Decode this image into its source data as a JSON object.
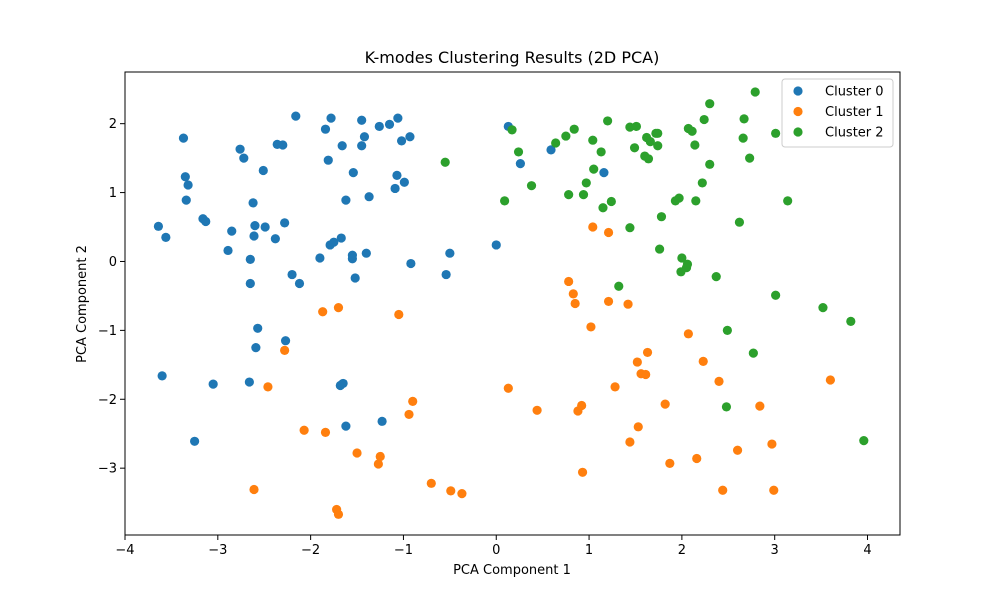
{
  "chart_data": {
    "type": "scatter",
    "title": "K-modes Clustering Results (2D PCA)",
    "xlabel": "PCA Component 1",
    "ylabel": "PCA Component 2",
    "xlim": [
      -4,
      4.35
    ],
    "ylim": [
      -3.97,
      2.75
    ],
    "xticks": [
      -4,
      -3,
      -2,
      -1,
      0,
      1,
      2,
      3,
      4
    ],
    "yticks": [
      -3,
      -2,
      -1,
      0,
      1,
      2
    ],
    "grid": false,
    "legend_position": "top-right",
    "series": [
      {
        "name": "Cluster 0",
        "color": "#1f77b4",
        "points": [
          [
            -3.64,
            0.51
          ],
          [
            -3.56,
            0.35
          ],
          [
            -3.37,
            1.79
          ],
          [
            -3.35,
            1.23
          ],
          [
            -3.32,
            1.11
          ],
          [
            -3.34,
            0.89
          ],
          [
            -3.16,
            0.62
          ],
          [
            -3.13,
            0.58
          ],
          [
            -2.89,
            0.16
          ],
          [
            -2.85,
            0.44
          ],
          [
            -2.76,
            1.63
          ],
          [
            -2.72,
            1.5
          ],
          [
            -2.65,
            0.03
          ],
          [
            -2.65,
            -0.32
          ],
          [
            -2.62,
            0.85
          ],
          [
            -2.6,
            0.52
          ],
          [
            -2.61,
            0.37
          ],
          [
            -2.51,
            1.32
          ],
          [
            -2.49,
            0.5
          ],
          [
            -2.38,
            0.33
          ],
          [
            -2.36,
            1.7
          ],
          [
            -2.3,
            1.69
          ],
          [
            -2.28,
            0.56
          ],
          [
            -2.2,
            -0.19
          ],
          [
            -2.16,
            2.11
          ],
          [
            -2.12,
            -0.32
          ],
          [
            -1.9,
            0.05
          ],
          [
            -1.84,
            1.92
          ],
          [
            -1.81,
            1.47
          ],
          [
            -1.78,
            2.08
          ],
          [
            -1.79,
            0.24
          ],
          [
            -1.75,
            0.28
          ],
          [
            -1.66,
            1.68
          ],
          [
            -1.67,
            0.34
          ],
          [
            -1.62,
            0.89
          ],
          [
            -1.54,
            1.29
          ],
          [
            -1.55,
            0.09
          ],
          [
            -1.55,
            0.04
          ],
          [
            -1.52,
            -0.24
          ],
          [
            -1.45,
            2.05
          ],
          [
            -1.45,
            1.68
          ],
          [
            -1.42,
            1.81
          ],
          [
            -1.4,
            0.12
          ],
          [
            -1.37,
            0.94
          ],
          [
            -1.26,
            1.96
          ],
          [
            -1.15,
            1.99
          ],
          [
            -1.09,
            1.06
          ],
          [
            -1.06,
            2.08
          ],
          [
            -1.07,
            1.25
          ],
          [
            -1.02,
            1.75
          ],
          [
            -0.99,
            1.15
          ],
          [
            -0.93,
            1.81
          ],
          [
            -0.92,
            -0.03
          ],
          [
            -0.54,
            -0.19
          ],
          [
            -0.5,
            0.12
          ],
          [
            0.0,
            0.24
          ],
          [
            0.13,
            1.96
          ],
          [
            0.26,
            1.42
          ],
          [
            0.59,
            1.62
          ],
          [
            1.16,
            1.29
          ],
          [
            -3.6,
            -1.66
          ],
          [
            -3.25,
            -2.61
          ],
          [
            -3.05,
            -1.78
          ],
          [
            -2.66,
            -1.75
          ],
          [
            -2.57,
            -0.97
          ],
          [
            -2.59,
            -1.25
          ],
          [
            -2.27,
            -1.15
          ],
          [
            -1.68,
            -1.8
          ],
          [
            -1.65,
            -1.77
          ],
          [
            -1.62,
            -2.39
          ],
          [
            -1.23,
            -2.32
          ]
        ]
      },
      {
        "name": "Cluster 1",
        "color": "#ff7f0e",
        "points": [
          [
            -2.61,
            -3.31
          ],
          [
            -2.46,
            -1.82
          ],
          [
            -2.28,
            -1.29
          ],
          [
            -2.07,
            -2.45
          ],
          [
            -1.87,
            -0.73
          ],
          [
            -1.84,
            -2.48
          ],
          [
            -1.7,
            -0.67
          ],
          [
            -1.72,
            -3.6
          ],
          [
            -1.7,
            -3.67
          ],
          [
            -1.5,
            -2.78
          ],
          [
            -1.27,
            -2.94
          ],
          [
            -1.25,
            -2.83
          ],
          [
            -1.05,
            -0.77
          ],
          [
            -0.94,
            -2.22
          ],
          [
            -0.9,
            -2.03
          ],
          [
            -0.7,
            -3.22
          ],
          [
            -0.49,
            -3.33
          ],
          [
            -0.37,
            -3.37
          ],
          [
            0.13,
            -1.84
          ],
          [
            0.44,
            -2.16
          ],
          [
            0.78,
            -0.29
          ],
          [
            0.83,
            -0.47
          ],
          [
            0.85,
            -0.61
          ],
          [
            0.88,
            -2.17
          ],
          [
            0.92,
            -2.09
          ],
          [
            0.93,
            -3.06
          ],
          [
            1.02,
            -0.95
          ],
          [
            1.04,
            0.5
          ],
          [
            1.21,
            0.42
          ],
          [
            1.21,
            -0.58
          ],
          [
            1.28,
            -1.82
          ],
          [
            1.42,
            -0.62
          ],
          [
            1.44,
            -2.62
          ],
          [
            1.52,
            -1.46
          ],
          [
            1.53,
            -2.4
          ],
          [
            1.56,
            -1.63
          ],
          [
            1.61,
            -1.64
          ],
          [
            1.63,
            -1.32
          ],
          [
            1.82,
            -2.07
          ],
          [
            1.87,
            -2.93
          ],
          [
            2.07,
            -1.05
          ],
          [
            2.16,
            -2.86
          ],
          [
            2.23,
            -1.45
          ],
          [
            2.4,
            -1.74
          ],
          [
            2.44,
            -3.32
          ],
          [
            2.6,
            -2.74
          ],
          [
            2.84,
            -2.1
          ],
          [
            2.97,
            -2.65
          ],
          [
            2.99,
            -3.32
          ],
          [
            3.6,
            -1.72
          ]
        ]
      },
      {
        "name": "Cluster 2",
        "color": "#2ca02c",
        "points": [
          [
            -0.55,
            1.44
          ],
          [
            0.09,
            0.88
          ],
          [
            0.17,
            1.91
          ],
          [
            0.24,
            1.59
          ],
          [
            0.38,
            1.1
          ],
          [
            0.64,
            1.72
          ],
          [
            0.75,
            1.82
          ],
          [
            0.78,
            0.97
          ],
          [
            0.84,
            1.92
          ],
          [
            0.94,
            0.97
          ],
          [
            0.97,
            1.14
          ],
          [
            1.04,
            1.76
          ],
          [
            1.05,
            1.34
          ],
          [
            1.13,
            1.59
          ],
          [
            1.15,
            0.78
          ],
          [
            1.2,
            2.04
          ],
          [
            1.24,
            0.87
          ],
          [
            1.32,
            -0.36
          ],
          [
            1.44,
            0.49
          ],
          [
            1.44,
            1.95
          ],
          [
            1.49,
            1.65
          ],
          [
            1.51,
            1.96
          ],
          [
            1.6,
            1.53
          ],
          [
            1.62,
            1.8
          ],
          [
            1.64,
            1.49
          ],
          [
            1.66,
            1.74
          ],
          [
            1.72,
            1.86
          ],
          [
            1.74,
            1.68
          ],
          [
            1.74,
            1.86
          ],
          [
            1.76,
            0.18
          ],
          [
            1.78,
            0.65
          ],
          [
            1.93,
            0.88
          ],
          [
            1.97,
            0.92
          ],
          [
            1.99,
            -0.15
          ],
          [
            2.0,
            0.05
          ],
          [
            2.05,
            -0.09
          ],
          [
            2.06,
            -0.04
          ],
          [
            2.07,
            1.93
          ],
          [
            2.11,
            1.89
          ],
          [
            2.14,
            1.69
          ],
          [
            2.15,
            0.88
          ],
          [
            2.22,
            1.14
          ],
          [
            2.24,
            2.06
          ],
          [
            2.3,
            2.29
          ],
          [
            2.3,
            1.41
          ],
          [
            2.37,
            -0.22
          ],
          [
            2.49,
            -1.0
          ],
          [
            2.48,
            -2.11
          ],
          [
            2.62,
            0.57
          ],
          [
            2.66,
            1.79
          ],
          [
            2.67,
            2.07
          ],
          [
            2.73,
            1.5
          ],
          [
            2.77,
            -1.33
          ],
          [
            2.79,
            2.46
          ],
          [
            3.01,
            1.86
          ],
          [
            3.01,
            -0.49
          ],
          [
            3.14,
            0.88
          ],
          [
            3.52,
            -0.67
          ],
          [
            3.82,
            -0.87
          ],
          [
            3.96,
            -2.6
          ]
        ]
      }
    ]
  }
}
